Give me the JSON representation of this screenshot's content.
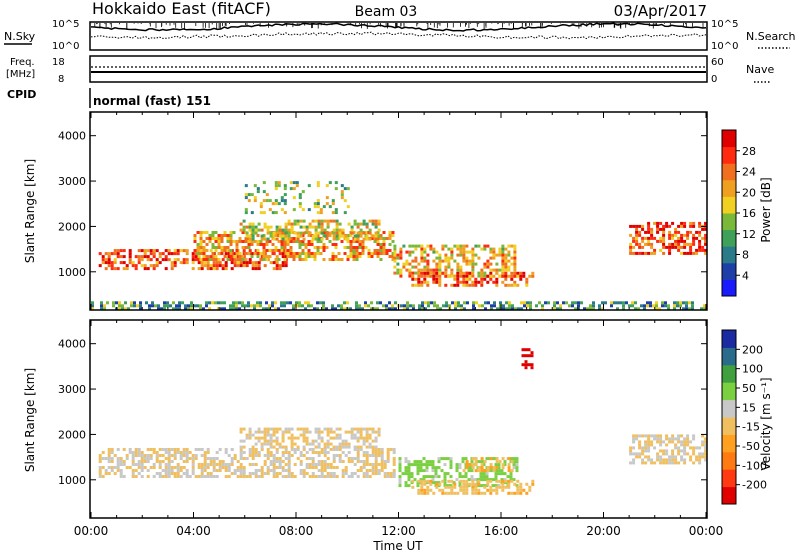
{
  "header": {
    "station": "Hokkaido East (fitACF)",
    "beam": "Beam 03",
    "date": "03/Apr/2017"
  },
  "top_panels": {
    "nsky_label": "N.Sky",
    "nsearch_label": "N.Search",
    "noise_ticks": [
      "10^5",
      "10^0"
    ],
    "noise_ticks_right": [
      "10^5",
      "10^0"
    ],
    "freq_label_line1": "Freq.",
    "freq_label_line2": "[MHz]",
    "freq_ticks": [
      "18",
      "8"
    ],
    "nave_label": "Nave",
    "nave_ticks": [
      "60",
      "0"
    ],
    "cpid_label": "CPID",
    "cpid_value": "normal (fast) 151"
  },
  "colors": {
    "power_scale": [
      "#1a1aff",
      "#1f3fa8",
      "#2a7a8a",
      "#3fa05a",
      "#7ab83a",
      "#f0d020",
      "#f0a020",
      "#f07020",
      "#ff2a10",
      "#e00000"
    ],
    "velocity_scale": [
      "#e00000",
      "#ff3a10",
      "#ff7a10",
      "#ffa020",
      "#f0c060",
      "#c8c8c8",
      "#7ad040",
      "#40a040",
      "#2a6a8a",
      "#1a2aa0"
    ],
    "noise_sky": "#000000",
    "noise_search": "#000000"
  },
  "chart_data": [
    {
      "type": "heatmap",
      "title": "",
      "xlabel": "",
      "ylabel": "Slant Range [km]",
      "x_ticks": [
        "00:00",
        "04:00",
        "08:00",
        "12:00",
        "16:00",
        "20:00",
        "00:00"
      ],
      "y_ticks": [
        "4000",
        "3000",
        "2000",
        "1000"
      ],
      "ylim": [
        180,
        4500
      ],
      "colorbar": {
        "label": "Power [dB]",
        "ticks": [
          "28",
          "24",
          "20",
          "16",
          "12",
          "8",
          "4"
        ],
        "range": [
          0,
          30
        ]
      },
      "echo_regions": [
        {
          "x": [
            0.3,
            7.6
          ],
          "range_km": [
            1050,
            1500
          ],
          "value": 24
        },
        {
          "x": [
            4.0,
            11.8
          ],
          "range_km": [
            1300,
            1900
          ],
          "value": 20
        },
        {
          "x": [
            5.8,
            11.3
          ],
          "range_km": [
            1700,
            2150
          ],
          "value": 16
        },
        {
          "x": [
            11.8,
            16.6
          ],
          "range_km": [
            900,
            1600
          ],
          "value": 18
        },
        {
          "x": [
            12.5,
            17.2
          ],
          "range_km": [
            700,
            1000
          ],
          "value": 24
        },
        {
          "x": [
            21.0,
            24.0
          ],
          "range_km": [
            1400,
            2100
          ],
          "value": 24
        },
        {
          "x": [
            6.0,
            10.0
          ],
          "range_km": [
            2300,
            3000
          ],
          "value": 14
        },
        {
          "x": [
            0.0,
            24.0
          ],
          "range_km": [
            180,
            350
          ],
          "value": 10
        }
      ]
    },
    {
      "type": "heatmap",
      "title": "",
      "xlabel": "Time UT",
      "ylabel": "Slant Range [km]",
      "x_ticks": [
        "00:00",
        "04:00",
        "08:00",
        "12:00",
        "16:00",
        "20:00",
        "00:00"
      ],
      "y_ticks": [
        "4000",
        "3000",
        "2000",
        "1000"
      ],
      "ylim": [
        180,
        4500
      ],
      "colorbar": {
        "label": "Velocity [m s⁻¹]",
        "ticks": [
          "200",
          "100",
          "50",
          "15",
          "-15",
          "-50",
          "-100",
          "-200"
        ],
        "range": [
          -250,
          250
        ]
      },
      "echo_regions": [
        {
          "x": [
            0.3,
            11.8
          ],
          "range_km": [
            1050,
            1700
          ],
          "value": 0
        },
        {
          "x": [
            5.8,
            11.3
          ],
          "range_km": [
            1700,
            2150
          ],
          "value": 0
        },
        {
          "x": [
            12.0,
            16.6
          ],
          "range_km": [
            900,
            1500
          ],
          "value": 60
        },
        {
          "x": [
            14.5,
            16.4
          ],
          "range_km": [
            1200,
            1500
          ],
          "value": -40
        },
        {
          "x": [
            12.5,
            17.2
          ],
          "range_km": [
            700,
            1000
          ],
          "value": -40
        },
        {
          "x": [
            21.0,
            24.0
          ],
          "range_km": [
            1400,
            2000
          ],
          "value": 0
        },
        {
          "x": [
            16.8,
            17.2
          ],
          "range_km": [
            3500,
            3900
          ],
          "value": -220
        }
      ]
    }
  ]
}
